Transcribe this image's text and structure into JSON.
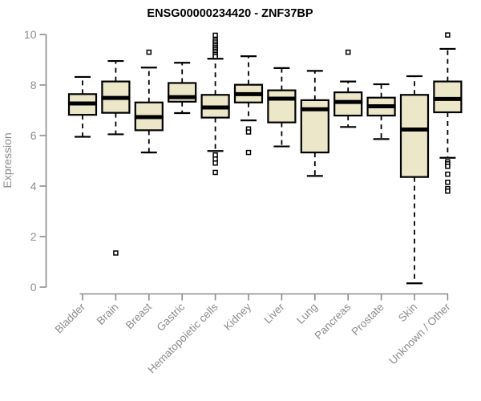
{
  "chart_data": {
    "type": "boxplot",
    "title": "ENSG00000234420 - ZNF37BP",
    "ylabel": "Expression",
    "xlabel": "",
    "ylim": [
      0,
      10
    ],
    "yticks": [
      0,
      2,
      4,
      6,
      8,
      10
    ],
    "grid": false,
    "x_label_rotation": 45,
    "categories": [
      "Bladder",
      "Brain",
      "Breast",
      "Gastric",
      "Hematopoietic cells",
      "Kidney",
      "Liver",
      "Lung",
      "Pancreas",
      "Prostate",
      "Skin",
      "Unknown / Other"
    ],
    "boxes": [
      {
        "category": "Bladder",
        "whisker_low": 5.95,
        "q1": 6.82,
        "median": 7.27,
        "q3": 7.64,
        "whisker_high": 8.32,
        "outliers": []
      },
      {
        "category": "Brain",
        "whisker_low": 6.05,
        "q1": 6.9,
        "median": 7.49,
        "q3": 8.14,
        "whisker_high": 8.95,
        "outliers": [
          1.35
        ]
      },
      {
        "category": "Breast",
        "whisker_low": 5.33,
        "q1": 6.21,
        "median": 6.73,
        "q3": 7.31,
        "whisker_high": 8.69,
        "outliers": [
          9.3
        ]
      },
      {
        "category": "Gastric",
        "whisker_low": 6.89,
        "q1": 7.34,
        "median": 7.52,
        "q3": 8.08,
        "whisker_high": 8.88,
        "outliers": []
      },
      {
        "category": "Hematopoietic cells",
        "whisker_low": 5.39,
        "q1": 6.71,
        "median": 7.11,
        "q3": 7.61,
        "whisker_high": 9.04,
        "outliers": [
          9.97,
          9.78,
          9.7,
          9.62,
          9.55,
          9.48,
          9.41,
          9.34,
          9.27,
          9.2,
          9.13,
          5.23,
          5.07,
          4.91,
          4.54
        ]
      },
      {
        "category": "Kidney",
        "whisker_low": 6.6,
        "q1": 7.31,
        "median": 7.64,
        "q3": 8.01,
        "whisker_high": 9.14,
        "outliers": [
          6.26,
          6.14,
          5.33
        ]
      },
      {
        "category": "Liver",
        "whisker_low": 5.57,
        "q1": 6.52,
        "median": 7.46,
        "q3": 7.79,
        "whisker_high": 8.67,
        "outliers": []
      },
      {
        "category": "Lung",
        "whisker_low": 4.4,
        "q1": 5.33,
        "median": 7.04,
        "q3": 7.4,
        "whisker_high": 8.56,
        "outliers": []
      },
      {
        "category": "Pancreas",
        "whisker_low": 6.34,
        "q1": 6.79,
        "median": 7.33,
        "q3": 7.71,
        "whisker_high": 8.14,
        "outliers": [
          9.3
        ]
      },
      {
        "category": "Prostate",
        "whisker_low": 5.86,
        "q1": 6.79,
        "median": 7.16,
        "q3": 7.5,
        "whisker_high": 8.03,
        "outliers": []
      },
      {
        "category": "Skin",
        "whisker_low": 0.15,
        "q1": 4.36,
        "median": 6.24,
        "q3": 7.61,
        "whisker_high": 8.35,
        "outliers": []
      },
      {
        "category": "Unknown / Other",
        "whisker_low": 5.12,
        "q1": 6.92,
        "median": 7.45,
        "q3": 8.14,
        "whisker_high": 9.43,
        "outliers": [
          9.98,
          4.96,
          4.88,
          4.78,
          4.47,
          4.15,
          3.9,
          3.8
        ]
      }
    ],
    "style": {
      "box_fill": "#EDE7C9",
      "box_border": "#000000",
      "median_color": "#000000",
      "whisker_color": "#000000",
      "outlier_color": "#000000",
      "axis_color": "#8C8C8C",
      "tick_label_color": "#8C8C8C",
      "title_color": "#000000",
      "background": "#FFFFFF"
    }
  }
}
